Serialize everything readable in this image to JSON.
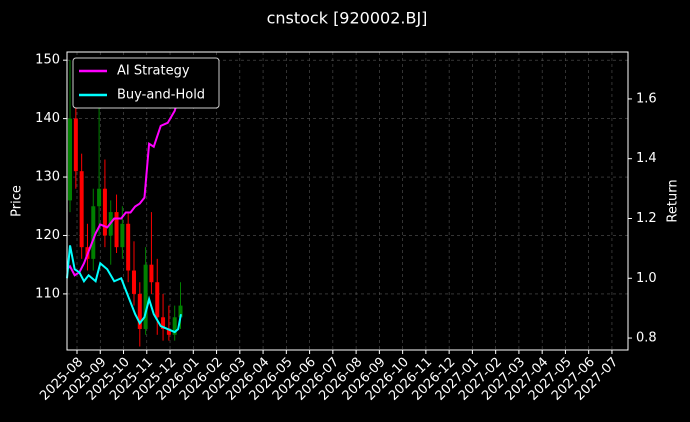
{
  "chart_data": {
    "type": "candlestick",
    "title": "cnstock [920002.BJ]",
    "ylabel": "Price",
    "y2label": "Return",
    "xlim": [
      -0.43,
      23.69
    ],
    "xticks": [
      {
        "value": 0,
        "label": "2025-08"
      },
      {
        "value": 1,
        "label": "2025-09"
      },
      {
        "value": 2,
        "label": "2025-10"
      },
      {
        "value": 3,
        "label": "2025-11"
      },
      {
        "value": 4,
        "label": "2025-12"
      },
      {
        "value": 5,
        "label": "2026-01"
      },
      {
        "value": 6,
        "label": "2026-02"
      },
      {
        "value": 7,
        "label": "2026-03"
      },
      {
        "value": 8,
        "label": "2026-04"
      },
      {
        "value": 9,
        "label": "2026-05"
      },
      {
        "value": 10,
        "label": "2026-06"
      },
      {
        "value": 11,
        "label": "2026-07"
      },
      {
        "value": 12,
        "label": "2026-08"
      },
      {
        "value": 13,
        "label": "2026-09"
      },
      {
        "value": 14,
        "label": "2026-10"
      },
      {
        "value": 15,
        "label": "2026-11"
      },
      {
        "value": 16,
        "label": "2026-12"
      },
      {
        "value": 17,
        "label": "2027-01"
      },
      {
        "value": 18,
        "label": "2027-02"
      },
      {
        "value": 19,
        "label": "2027-03"
      },
      {
        "value": 20,
        "label": "2027-04"
      },
      {
        "value": 21,
        "label": "2027-05"
      },
      {
        "value": 22,
        "label": "2027-06"
      },
      {
        "value": 23,
        "label": "2027-07"
      }
    ],
    "ylim": [
      100.4,
      151.4
    ],
    "yticks": [
      110,
      120,
      130,
      140,
      150
    ],
    "y2lim": [
      0.76,
      1.757
    ],
    "y2ticks": [
      0.8,
      {
        "value": 1,
        "label": "1.0"
      },
      1.2,
      1.4,
      1.6
    ],
    "grid": true,
    "legend": "upper left",
    "up_color": "#008000",
    "down_color": "#ff0000",
    "candles": {
      "x": [
        -0.3,
        -0.05,
        0.2,
        0.45,
        0.7,
        0.95,
        1.2,
        1.45,
        1.7,
        1.95,
        2.2,
        2.45,
        2.7,
        2.95,
        3.2,
        3.45,
        3.7,
        3.95,
        4.2,
        4.45
      ],
      "open": [
        126,
        140,
        131,
        118,
        116,
        125,
        128,
        120,
        124,
        118,
        122,
        114,
        110,
        104,
        115,
        112,
        106,
        104,
        103,
        106
      ],
      "high": [
        150,
        146,
        134,
        122,
        128,
        142,
        133,
        126,
        127,
        125,
        124,
        119,
        112,
        118,
        124,
        116,
        110,
        108,
        108,
        112
      ],
      "low": [
        124,
        128,
        116,
        114,
        114,
        120,
        118,
        115,
        117,
        116,
        112,
        108,
        101,
        103,
        110,
        103,
        102,
        102,
        102,
        104
      ],
      "close": [
        140,
        131,
        118,
        116,
        125,
        128,
        120,
        124,
        118,
        122,
        114,
        110,
        104,
        115,
        112,
        106,
        104,
        103,
        106,
        108
      ]
    },
    "x": [
      -0.43,
      -0.3,
      -0.1,
      0.1,
      0.3,
      0.5,
      0.8,
      1.0,
      1.3,
      1.6,
      1.9,
      2.1,
      2.3,
      2.5,
      2.7,
      2.9,
      3.1,
      3.3,
      3.6,
      3.9,
      4.2,
      4.35,
      4.47
    ],
    "series": [
      {
        "name": "AI Strategy",
        "color": "#ff00ff",
        "axis": "y2",
        "values": [
          1.03,
          1.04,
          1.01,
          1.02,
          1.05,
          1.09,
          1.15,
          1.18,
          1.17,
          1.2,
          1.2,
          1.22,
          1.22,
          1.24,
          1.25,
          1.27,
          1.45,
          1.44,
          1.51,
          1.52,
          1.56,
          1.6,
          1.62
        ]
      },
      {
        "name": "Buy-and-Hold",
        "color": "#00ffff",
        "axis": "y2",
        "values": [
          1.0,
          1.11,
          1.03,
          1.02,
          0.99,
          1.01,
          0.99,
          1.05,
          1.03,
          0.99,
          1.0,
          0.96,
          0.92,
          0.88,
          0.85,
          0.87,
          0.93,
          0.88,
          0.84,
          0.83,
          0.82,
          0.83,
          0.88
        ]
      }
    ]
  }
}
